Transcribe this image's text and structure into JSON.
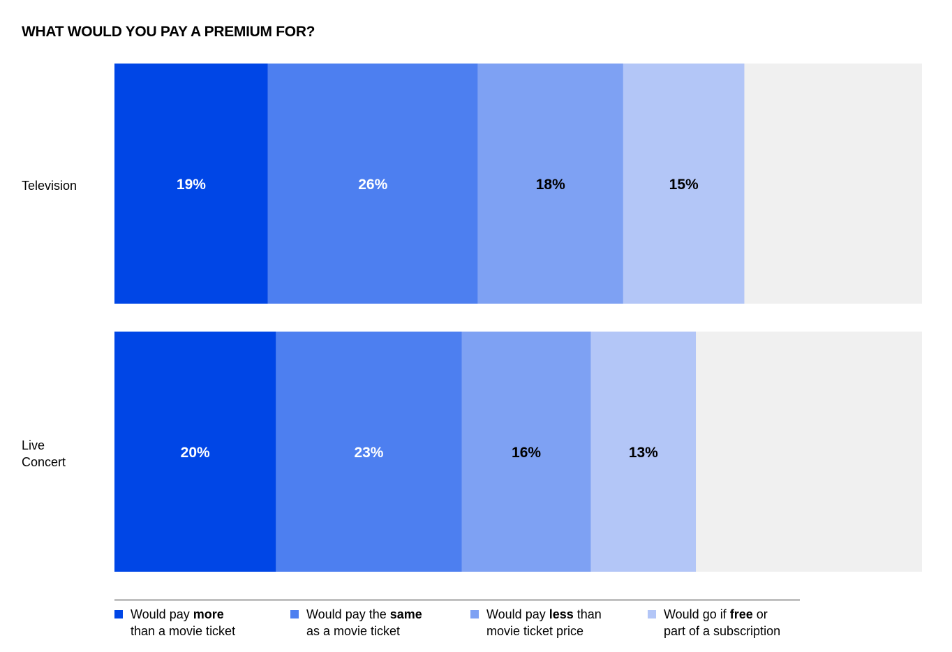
{
  "chart_data": {
    "type": "bar",
    "orientation": "horizontal",
    "stacked": true,
    "title": "WHAT WOULD YOU PAY A PREMIUM FOR?",
    "categories": [
      "Television",
      "Live Concert"
    ],
    "category_lines": [
      [
        "Television"
      ],
      [
        "Live",
        "Concert"
      ]
    ],
    "xlim": [
      0,
      100
    ],
    "grid": false,
    "legend_placement": "bottom",
    "remainder_color": "#f0f0f0",
    "series": [
      {
        "name": "Would pay more than a movie ticket",
        "color": "#0046e6",
        "label_color": "#ffffff",
        "values": [
          19,
          20
        ],
        "labels": [
          "19%",
          "20%"
        ]
      },
      {
        "name": "Would pay the same as a movie ticket",
        "color": "#4d7ff0",
        "label_color": "#ffffff",
        "values": [
          26,
          23
        ],
        "labels": [
          "26%",
          "23%"
        ]
      },
      {
        "name": "Would pay less than movie ticket price",
        "color": "#7ea1f3",
        "label_color": "#000000",
        "values": [
          18,
          16
        ],
        "labels": [
          "18%",
          "16%"
        ]
      },
      {
        "name": "Would go if free or part of a subscription",
        "color": "#b3c6f7",
        "label_color": "#000000",
        "values": [
          15,
          13
        ],
        "labels": [
          "15%",
          "13%"
        ]
      }
    ]
  },
  "legend": [
    {
      "pre": "Would pay ",
      "bold": "more",
      "post": "",
      "line2": "than a movie ticket",
      "color": "#0046e6"
    },
    {
      "pre": "Would pay the ",
      "bold": "same",
      "post": "",
      "line2": "as a movie ticket",
      "color": "#4d7ff0"
    },
    {
      "pre": "Would pay ",
      "bold": "less",
      "post": " than",
      "line2": "movie ticket price",
      "color": "#7ea1f3"
    },
    {
      "pre": "Would go if ",
      "bold": "free",
      "post": " or",
      "line2": "part of a subscription",
      "color": "#b3c6f7"
    }
  ]
}
